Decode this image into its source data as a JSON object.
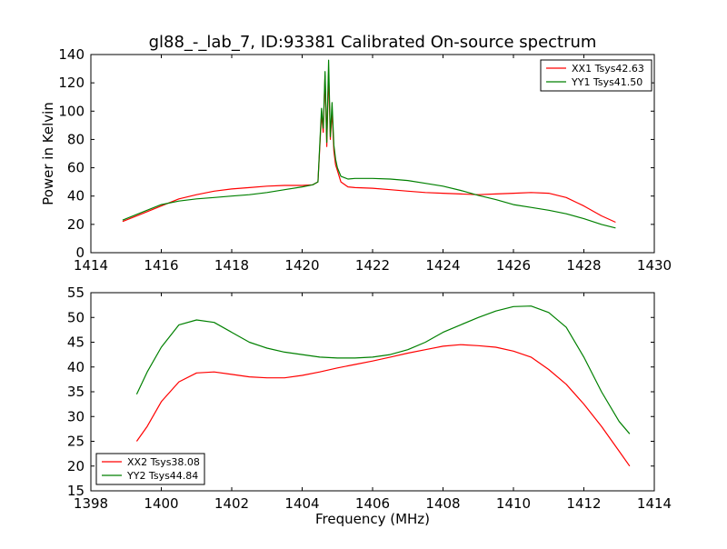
{
  "chart_data": [
    {
      "type": "line",
      "title": "gl88_-_lab_7, ID:93381 Calibrated On-source spectrum",
      "xlabel": "",
      "ylabel": "Power in Kelvin",
      "xlim": [
        1414,
        1430
      ],
      "ylim": [
        0,
        140
      ],
      "xticks": [
        "1414",
        "1416",
        "1418",
        "1420",
        "1422",
        "1424",
        "1426",
        "1428",
        "1430"
      ],
      "yticks": [
        "0",
        "20",
        "40",
        "60",
        "80",
        "100",
        "120",
        "140"
      ],
      "grid": false,
      "legend_position": "top-right",
      "series": [
        {
          "name": "XX1 Tsys42.63",
          "color": "#ff0000",
          "x": [
            1414.9,
            1415.5,
            1416.0,
            1416.5,
            1417.0,
            1417.5,
            1418.0,
            1418.5,
            1419.0,
            1419.5,
            1420.0,
            1420.3,
            1420.45,
            1420.55,
            1420.6,
            1420.65,
            1420.7,
            1420.75,
            1420.8,
            1420.85,
            1420.9,
            1420.95,
            1421.0,
            1421.1,
            1421.3,
            1421.5,
            1422.0,
            1422.5,
            1423.0,
            1423.5,
            1424.0,
            1424.5,
            1425.0,
            1425.5,
            1426.0,
            1426.5,
            1427.0,
            1427.5,
            1428.0,
            1428.5,
            1428.9
          ],
          "y": [
            22,
            28,
            33,
            38,
            41,
            43.5,
            45,
            46,
            47,
            47.5,
            47.5,
            48,
            50,
            98,
            85,
            125,
            75,
            128,
            80,
            100,
            72,
            62,
            58,
            50,
            46.5,
            46,
            45.5,
            44.5,
            43.5,
            42.5,
            42,
            41.5,
            41,
            41.5,
            42,
            42.5,
            42,
            39,
            33,
            26,
            21.5
          ]
        },
        {
          "name": "YY1 Tsys41.50",
          "color": "#008000",
          "x": [
            1414.9,
            1415.5,
            1416.0,
            1416.5,
            1417.0,
            1417.5,
            1418.0,
            1418.5,
            1419.0,
            1419.5,
            1420.0,
            1420.3,
            1420.45,
            1420.55,
            1420.6,
            1420.65,
            1420.7,
            1420.75,
            1420.8,
            1420.85,
            1420.9,
            1420.95,
            1421.0,
            1421.1,
            1421.3,
            1421.5,
            1422.0,
            1422.5,
            1423.0,
            1423.5,
            1424.0,
            1424.5,
            1425.0,
            1425.5,
            1426.0,
            1426.5,
            1427.0,
            1427.5,
            1428.0,
            1428.5,
            1428.9
          ],
          "y": [
            23,
            29,
            34,
            36.5,
            38,
            39,
            40,
            41,
            42.5,
            44.5,
            46.5,
            48,
            50,
            102,
            88,
            128,
            78,
            136,
            82,
            106,
            76,
            66,
            60,
            54,
            52,
            52.5,
            52.5,
            52,
            51,
            49,
            47,
            44,
            40.5,
            37.5,
            34,
            32,
            30,
            27.5,
            24,
            20,
            17.5
          ]
        }
      ]
    },
    {
      "type": "line",
      "title": "",
      "xlabel": "Frequency (MHz)",
      "ylabel": "",
      "xlim": [
        1398,
        1414
      ],
      "ylim": [
        15,
        55
      ],
      "xticks": [
        "1398",
        "1400",
        "1402",
        "1404",
        "1406",
        "1408",
        "1410",
        "1412",
        "1414"
      ],
      "yticks": [
        "15",
        "20",
        "25",
        "30",
        "35",
        "40",
        "45",
        "50",
        "55"
      ],
      "grid": false,
      "legend_position": "bottom-left",
      "series": [
        {
          "name": "XX2 Tsys38.08",
          "color": "#ff0000",
          "x": [
            1399.3,
            1399.6,
            1400.0,
            1400.5,
            1401.0,
            1401.5,
            1402.0,
            1402.5,
            1403.0,
            1403.5,
            1404.0,
            1404.5,
            1405.0,
            1405.5,
            1406.0,
            1406.5,
            1407.0,
            1407.5,
            1408.0,
            1408.5,
            1409.0,
            1409.5,
            1410.0,
            1410.5,
            1411.0,
            1411.5,
            1412.0,
            1412.5,
            1413.0,
            1413.3
          ],
          "y": [
            25,
            28,
            33,
            37,
            38.8,
            39,
            38.5,
            38,
            37.8,
            37.8,
            38.3,
            39,
            39.8,
            40.5,
            41.2,
            42,
            42.8,
            43.5,
            44.2,
            44.5,
            44.3,
            44,
            43.2,
            42,
            39.5,
            36.5,
            32.5,
            28,
            23,
            20
          ]
        },
        {
          "name": "YY2 Tsys44.84",
          "color": "#008000",
          "x": [
            1399.3,
            1399.6,
            1400.0,
            1400.5,
            1401.0,
            1401.5,
            1402.0,
            1402.5,
            1403.0,
            1403.5,
            1404.0,
            1404.5,
            1405.0,
            1405.5,
            1406.0,
            1406.5,
            1407.0,
            1407.5,
            1408.0,
            1408.5,
            1409.0,
            1409.5,
            1410.0,
            1410.5,
            1411.0,
            1411.5,
            1412.0,
            1412.5,
            1413.0,
            1413.3
          ],
          "y": [
            34.5,
            39,
            44,
            48.5,
            49.5,
            49,
            47,
            45,
            43.8,
            43,
            42.5,
            42,
            41.8,
            41.8,
            42,
            42.5,
            43.5,
            45,
            47,
            48.5,
            50,
            51.3,
            52.2,
            52.3,
            51,
            48,
            42,
            35,
            29,
            26.5
          ]
        }
      ]
    }
  ]
}
